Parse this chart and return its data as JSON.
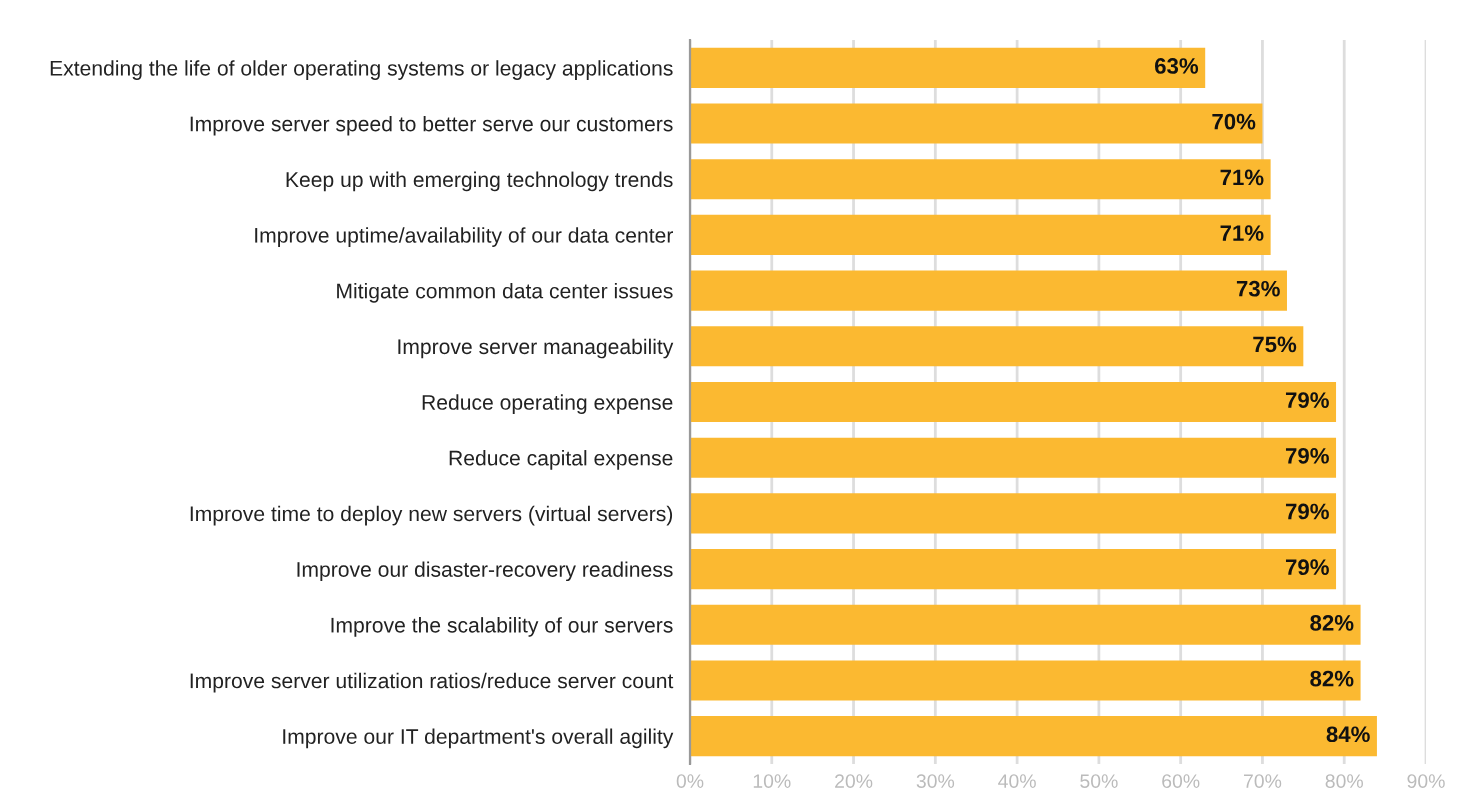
{
  "chart_data": {
    "type": "bar",
    "orientation": "horizontal",
    "categories": [
      "Extending the life of older operating systems or legacy applications",
      "Improve server speed to better serve our customers",
      "Keep up with emerging technology trends",
      "Improve uptime/availability of our data center",
      "Mitigate common data center issues",
      "Improve server manageability",
      "Reduce operating expense",
      "Reduce capital expense",
      "Improve time to deploy new servers (virtual servers)",
      "Improve our disaster-recovery readiness",
      "Improve the scalability of our servers",
      "Improve server utilization ratios/reduce server count",
      "Improve our IT department's overall agility"
    ],
    "values": [
      63,
      70,
      71,
      71,
      73,
      75,
      79,
      79,
      79,
      79,
      82,
      82,
      84
    ],
    "value_labels": [
      "63%",
      "70%",
      "71%",
      "71%",
      "73%",
      "75%",
      "79%",
      "79%",
      "79%",
      "79%",
      "82%",
      "82%",
      "84%"
    ],
    "color": "#fbb931",
    "xlim": [
      0,
      90
    ],
    "xticks": [
      {
        "value": 0,
        "label": "0%"
      },
      {
        "value": 10,
        "label": "10%"
      },
      {
        "value": 20,
        "label": "20%"
      },
      {
        "value": 30,
        "label": "30%"
      },
      {
        "value": 40,
        "label": "40%"
      },
      {
        "value": 50,
        "label": "50%"
      },
      {
        "value": 60,
        "label": "60%"
      },
      {
        "value": 70,
        "label": "70%"
      },
      {
        "value": 80,
        "label": "80%"
      },
      {
        "value": 90,
        "label": "90%"
      }
    ],
    "grid": "x",
    "legend": false
  }
}
